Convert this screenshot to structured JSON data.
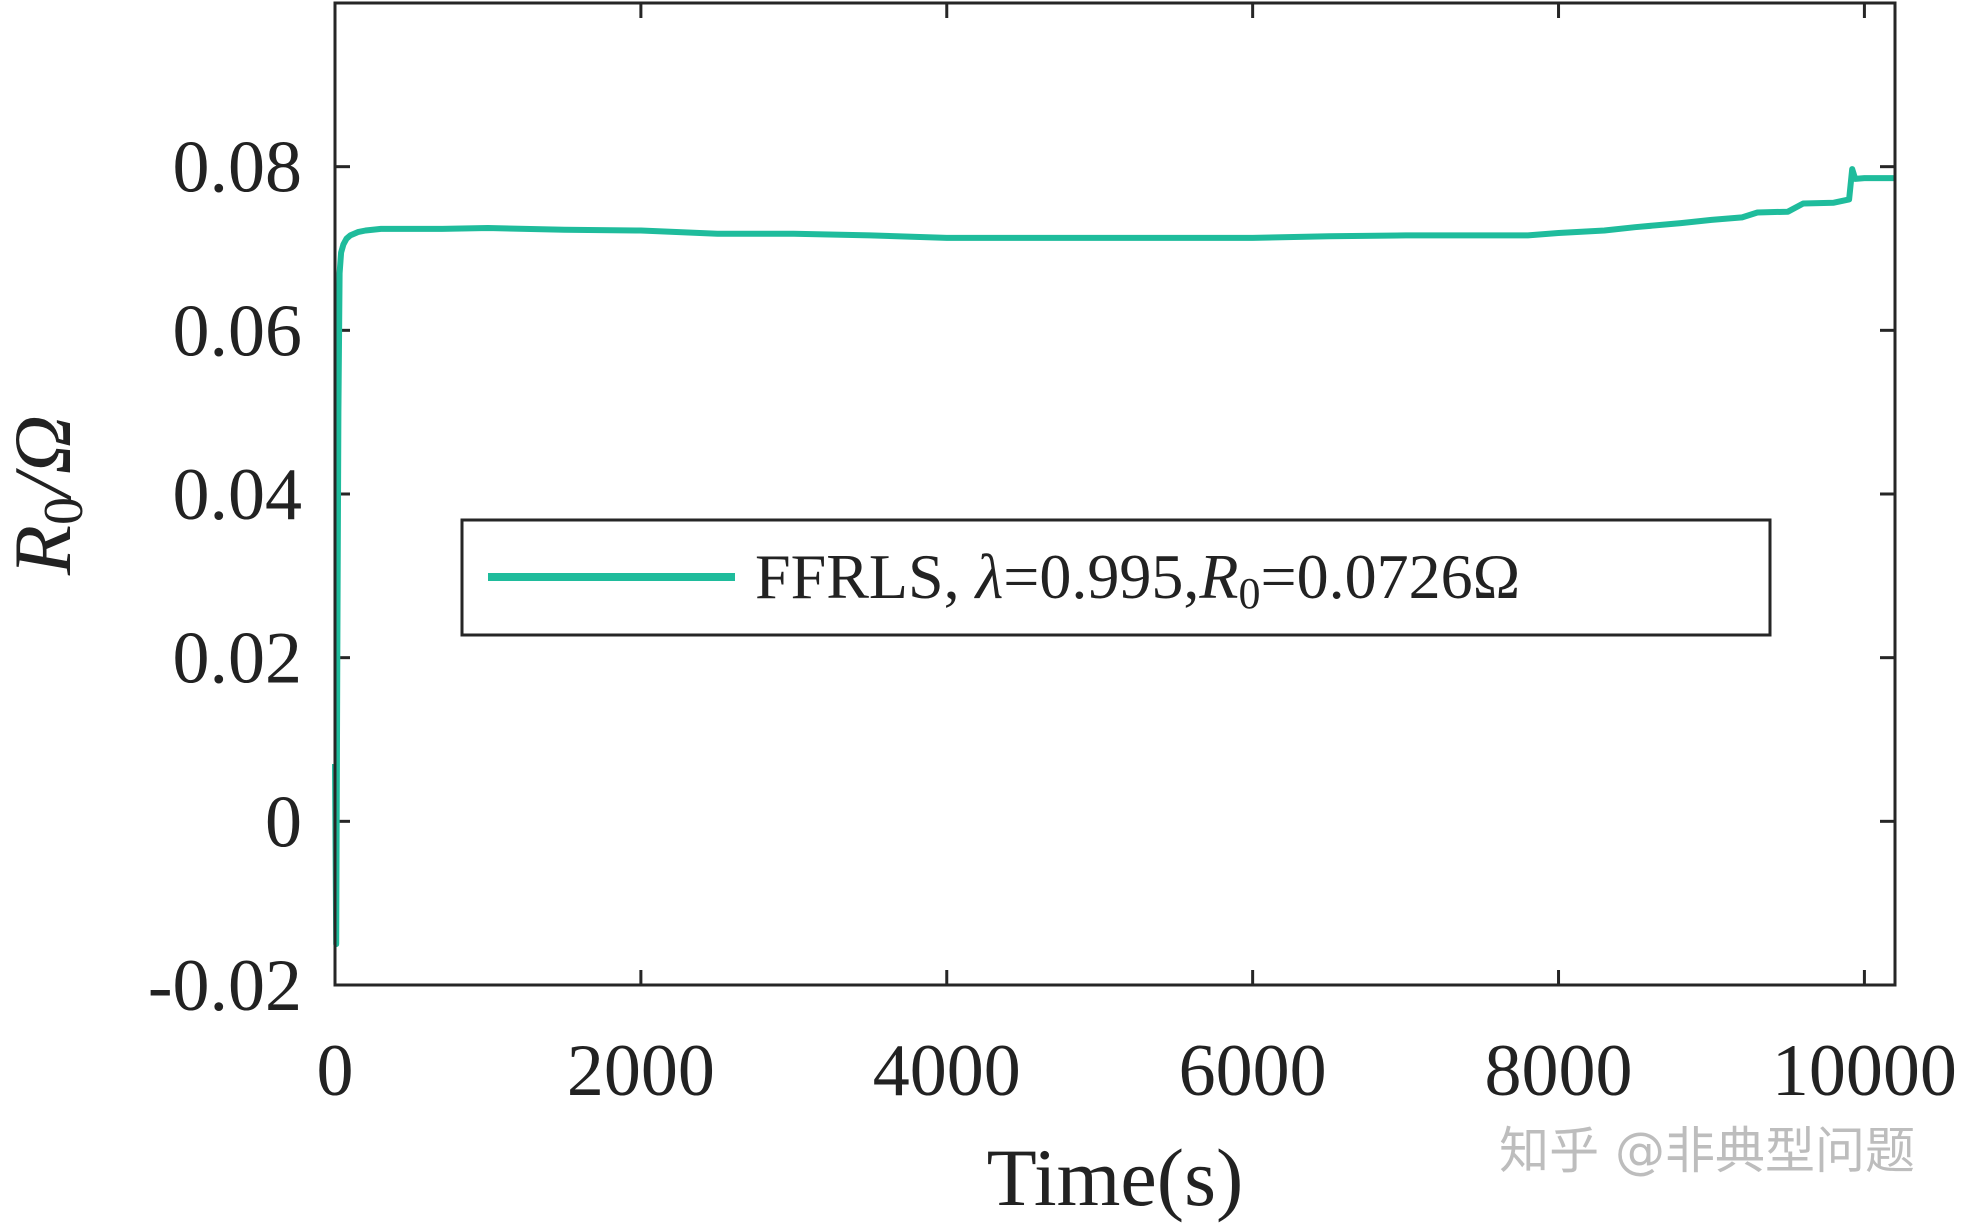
{
  "chart_data": {
    "type": "line",
    "xlabel": "Time(s)",
    "ylabel": {
      "symbol": "R",
      "subscript": "0",
      "rest": "/Ω"
    },
    "xlim": [
      0,
      10200
    ],
    "ylim": [
      -0.02,
      0.1
    ],
    "x_ticks": [
      {
        "value": 0,
        "label": "0"
      },
      {
        "value": 2000,
        "label": "2000"
      },
      {
        "value": 4000,
        "label": "4000"
      },
      {
        "value": 6000,
        "label": "6000"
      },
      {
        "value": 8000,
        "label": "8000"
      },
      {
        "value": 10000,
        "label": "10000"
      }
    ],
    "y_ticks": [
      {
        "value": -0.02,
        "label": "-0.02"
      },
      {
        "value": 0,
        "label": "0"
      },
      {
        "value": 0.02,
        "label": "0.02"
      },
      {
        "value": 0.04,
        "label": "0.04"
      },
      {
        "value": 0.06,
        "label": "0.06"
      },
      {
        "value": 0.08,
        "label": "0.08"
      }
    ],
    "grid": false,
    "legend_position": "center-right",
    "series": [
      {
        "name": "FFRLS, λ=0.995,R0=0.0726Ω",
        "legend": {
          "prefix": "FFRLS, ",
          "lambda": "λ",
          "lambda_value": "=0.995,",
          "R": "R",
          "R_sub": "0",
          "R_value": "=0.0726Ω"
        },
        "color": "#1fbc9c",
        "x": [
          0,
          8,
          15,
          22,
          30,
          40,
          55,
          75,
          100,
          150,
          200,
          300,
          500,
          700,
          1000,
          1500,
          2000,
          2500,
          3000,
          3500,
          4000,
          4500,
          5000,
          5500,
          6000,
          6500,
          7000,
          7500,
          7800,
          8000,
          8300,
          8500,
          8800,
          9000,
          9200,
          9300,
          9500,
          9600,
          9800,
          9900,
          9920,
          9940,
          10000,
          10200
        ],
        "values": [
          0.007,
          -0.015,
          0.02,
          0.05,
          0.067,
          0.0695,
          0.0705,
          0.0712,
          0.0716,
          0.072,
          0.0722,
          0.0724,
          0.0724,
          0.0724,
          0.0725,
          0.0723,
          0.0722,
          0.0718,
          0.0718,
          0.0716,
          0.0713,
          0.0713,
          0.0713,
          0.0713,
          0.0713,
          0.0715,
          0.0716,
          0.0716,
          0.0716,
          0.0719,
          0.0722,
          0.0726,
          0.0731,
          0.0735,
          0.0738,
          0.0744,
          0.0745,
          0.0755,
          0.0756,
          0.076,
          0.0797,
          0.0785,
          0.0786,
          0.0786
        ]
      }
    ]
  },
  "watermark": "知乎 @非典型问题"
}
